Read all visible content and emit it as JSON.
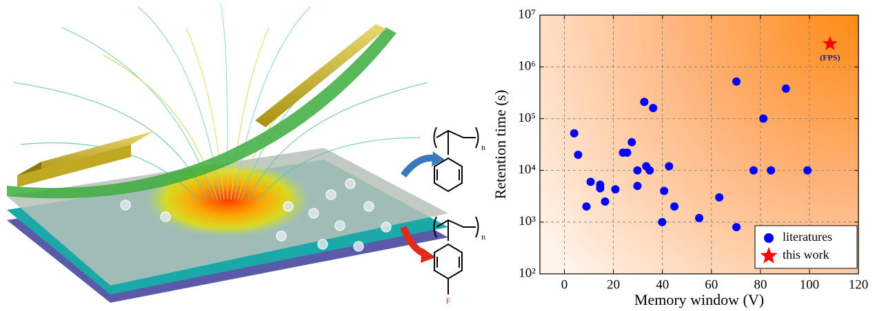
{
  "illustration": {
    "labels": [
      "n",
      "n",
      "F"
    ]
  },
  "chart_data": {
    "type": "scatter",
    "xlabel": "Memory window (V)",
    "ylabel": "Retention time (s)",
    "xlim": [
      -10,
      120
    ],
    "xticks": [
      0,
      20,
      40,
      60,
      80,
      100,
      120
    ],
    "ylim": [
      100,
      10000000
    ],
    "yscale": "log",
    "yticks": [
      {
        "value": 100,
        "label": "10²"
      },
      {
        "value": 1000,
        "label": "10³"
      },
      {
        "value": 10000,
        "label": "10⁴"
      },
      {
        "value": 100000,
        "label": "10⁵"
      },
      {
        "value": 1000000,
        "label": "10⁶"
      },
      {
        "value": 10000000,
        "label": "10⁷"
      }
    ],
    "grid": true,
    "legend": "lower right",
    "series": [
      {
        "name": "literatures",
        "color": "#0000ff",
        "marker": "circle",
        "x": [
          4,
          5.6,
          10.7,
          14.6,
          14.6,
          9,
          16.6,
          20.8,
          23.9,
          25.6,
          27.5,
          29.8,
          29.8,
          32.6,
          33.4,
          34.8,
          36.2,
          40.7,
          39.9,
          42.7,
          44.9,
          55,
          63.2,
          70.2,
          70.2,
          77.2,
          81.2,
          84.3,
          90.4,
          99.2
        ],
        "values": [
          52000,
          20000,
          6000,
          5300,
          4500,
          2000,
          2500,
          4300,
          22000,
          22000,
          35000,
          10000,
          5000,
          210000,
          12000,
          10000,
          160000,
          4000,
          1000,
          12000,
          2000,
          1200,
          3000,
          520000,
          800,
          10000,
          100000,
          10000,
          380000,
          10000
        ]
      },
      {
        "name": "this work",
        "color": "#ff0000",
        "marker": "star",
        "x": [
          108.4
        ],
        "values": [
          2800000
        ],
        "annotation": "(FPS)"
      }
    ]
  }
}
